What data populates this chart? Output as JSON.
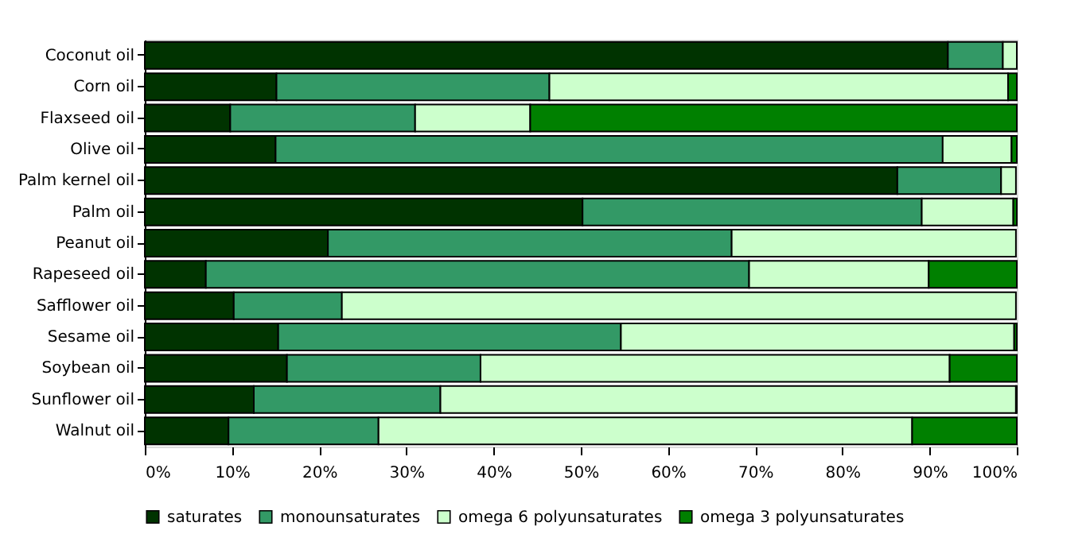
{
  "chart_data": {
    "type": "bar",
    "orientation": "horizontal",
    "stacked": true,
    "categories": [
      "Coconut oil",
      "Corn oil",
      "Flaxseed oil",
      "Olive oil",
      "Palm kernel oil",
      "Palm oil",
      "Peanut oil",
      "Rapeseed oil",
      "Safflower oil",
      "Sesame oil",
      "Soybean oil",
      "Sunflower oil",
      "Walnut oil"
    ],
    "series": [
      {
        "name": "saturates",
        "color": "#003300",
        "values": [
          92.1,
          15.1,
          9.8,
          15.0,
          86.3,
          50.2,
          21.0,
          7.0,
          10.2,
          15.3,
          16.3,
          12.5,
          9.6
        ]
      },
      {
        "name": "monounsaturates",
        "color": "#339966",
        "values": [
          6.3,
          31.3,
          21.2,
          76.5,
          11.9,
          38.9,
          46.3,
          62.3,
          12.4,
          39.3,
          22.2,
          21.4,
          17.2
        ]
      },
      {
        "name": "omega 6 polyunsaturates",
        "color": "#ccffcc",
        "values": [
          1.6,
          52.6,
          13.2,
          7.9,
          1.7,
          10.5,
          32.6,
          20.6,
          77.3,
          45.1,
          53.8,
          66.0,
          61.2
        ]
      },
      {
        "name": "omega 3 polyunsaturates",
        "color": "#008000",
        "values": [
          0,
          1.0,
          55.8,
          0.6,
          0,
          0.4,
          0,
          10.1,
          0,
          0.3,
          7.7,
          0.1,
          12.0
        ]
      }
    ],
    "xlim": [
      0,
      100
    ],
    "xticks": [
      {
        "value": 0,
        "label": "0%"
      },
      {
        "value": 10,
        "label": "10%"
      },
      {
        "value": 20,
        "label": "20%"
      },
      {
        "value": 30,
        "label": "30%"
      },
      {
        "value": 40,
        "label": "40%"
      },
      {
        "value": 50,
        "label": "50%"
      },
      {
        "value": 60,
        "label": "60%"
      },
      {
        "value": 70,
        "label": "70%"
      },
      {
        "value": 80,
        "label": "80%"
      },
      {
        "value": 90,
        "label": "90%"
      },
      {
        "value": 100,
        "label": "100%"
      }
    ],
    "grid": false,
    "legend": "bottom"
  }
}
